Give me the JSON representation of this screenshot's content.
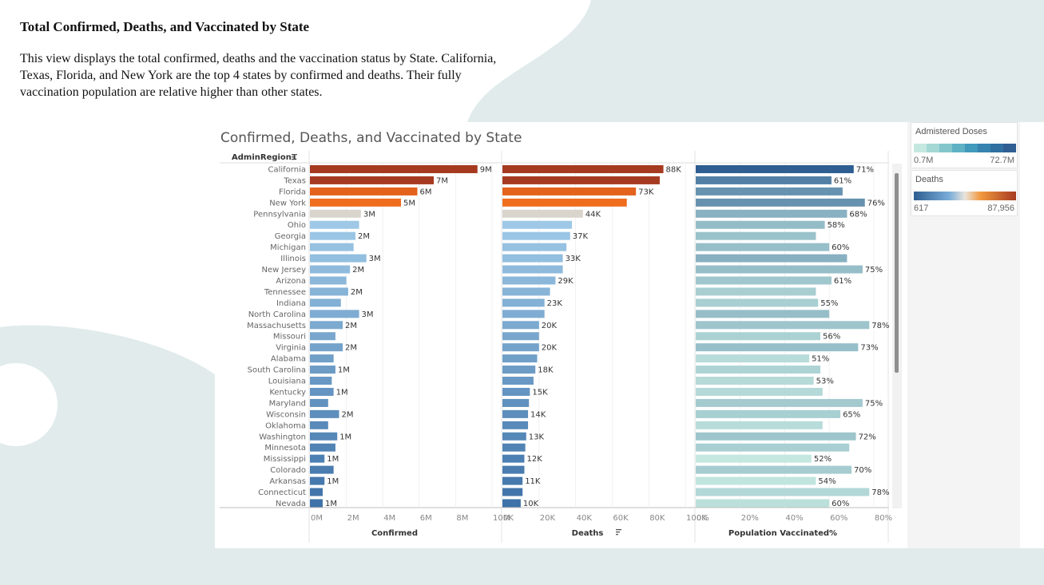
{
  "slide": {
    "title": "Total Confirmed, Deaths, and Vaccinated by State",
    "description": "This view displays the total confirmed, deaths and the vaccination status by State. California, Texas, Florida, and New York are the top 4 states by confirmed and deaths. Their fully vaccination population are relative higher than other states."
  },
  "legends": {
    "doses": {
      "title": "Admistered Doses",
      "min": "0.7M",
      "max": "72.7M"
    },
    "deaths": {
      "title": "Deaths",
      "min": "617",
      "max": "87,956"
    }
  },
  "colors": {
    "top_reds": [
      "#a63a20",
      "#a63a20",
      "#e3621c",
      "#ef6d1d"
    ],
    "neutral": "#d9d4cc",
    "blue_light": "#9ec8e6",
    "blue_dark": "#3e72a8",
    "teal_light": "#c4e8e0",
    "teal_dark": "#2e5e92"
  },
  "chart_data": {
    "type": "bar",
    "orientation": "horizontal",
    "title": "Confirmed, Deaths, and Vaccinated by State",
    "row_header": "AdminRegion1",
    "categories": [
      "California",
      "Texas",
      "Florida",
      "New York",
      "Pennsylvania",
      "Ohio",
      "Georgia",
      "Michigan",
      "Illinois",
      "New Jersey",
      "Arizona",
      "Tennessee",
      "Indiana",
      "North Carolina",
      "Massachusetts",
      "Missouri",
      "Virginia",
      "Alabama",
      "South Carolina",
      "Louisiana",
      "Kentucky",
      "Maryland",
      "Wisconsin",
      "Oklahoma",
      "Washington",
      "Minnesota",
      "Mississippi",
      "Colorado",
      "Arkansas",
      "Connecticut",
      "Nevada"
    ],
    "panels": [
      {
        "name": "Confirmed",
        "xlabel": "Confirmed",
        "unit": "M",
        "xlim": [
          0,
          10
        ],
        "ticks": [
          "0M",
          "2M",
          "4M",
          "6M",
          "8M",
          "10M"
        ],
        "values": [
          9.2,
          6.8,
          5.9,
          5.0,
          2.8,
          2.7,
          2.5,
          2.4,
          3.1,
          2.2,
          2.0,
          2.1,
          1.7,
          2.7,
          1.8,
          1.4,
          1.8,
          1.3,
          1.4,
          1.2,
          1.3,
          1.0,
          1.6,
          1.0,
          1.5,
          1.4,
          0.8,
          1.3,
          0.8,
          0.7,
          0.7
        ],
        "labels": [
          "9M",
          "7M",
          "6M",
          "5M",
          "3M",
          "",
          "2M",
          "",
          "3M",
          "2M",
          "",
          "2M",
          "",
          "3M",
          "2M",
          "",
          "2M",
          "",
          "1M",
          "",
          "1M",
          "",
          "2M",
          "",
          "1M",
          "",
          "1M",
          "",
          "1M",
          "",
          "1M"
        ]
      },
      {
        "name": "Deaths",
        "xlabel": "Deaths",
        "unit": "K",
        "xlim": [
          0,
          100
        ],
        "ticks": [
          "0K",
          "20K",
          "40K",
          "60K",
          "80K",
          "100K"
        ],
        "values": [
          88.0,
          86.0,
          73.0,
          68.0,
          44.0,
          38.0,
          37.0,
          35.0,
          33.0,
          33.0,
          29.0,
          26.0,
          23.0,
          23.0,
          20.0,
          20.0,
          20.0,
          19.0,
          18.0,
          17.0,
          15.0,
          14.5,
          14.0,
          14.0,
          13.0,
          12.5,
          12.0,
          12.0,
          11.0,
          11.0,
          10.0
        ],
        "labels": [
          "88K",
          "",
          "73K",
          "",
          "44K",
          "",
          "37K",
          "",
          "33K",
          "",
          "29K",
          "",
          "23K",
          "",
          "20K",
          "",
          "20K",
          "",
          "18K",
          "",
          "15K",
          "",
          "14K",
          "",
          "13K",
          "",
          "12K",
          "",
          "11K",
          "",
          "10K"
        ]
      },
      {
        "name": "Population Vaccinated%",
        "xlabel": "Population Vaccinated%",
        "unit": "%",
        "xlim": [
          0,
          84
        ],
        "ticks": [
          "0%",
          "20%",
          "40%",
          "60%",
          "80%"
        ],
        "values": [
          71,
          61,
          66,
          76,
          68,
          58,
          54,
          60,
          68,
          75,
          61,
          54,
          55,
          60,
          78,
          56,
          73,
          51,
          56,
          53,
          57,
          75,
          65,
          57,
          72,
          69,
          52,
          70,
          54,
          78,
          60
        ],
        "labels": [
          "71%",
          "61%",
          "",
          "76%",
          "68%",
          "58%",
          "",
          "60%",
          "",
          "75%",
          "61%",
          "",
          "55%",
          "",
          "78%",
          "56%",
          "73%",
          "51%",
          "",
          "53%",
          "",
          "75%",
          "65%",
          "",
          "72%",
          "",
          "52%",
          "70%",
          "54%",
          "78%",
          "60%"
        ],
        "doses_millions": [
          72.7,
          50.1,
          38.2,
          38.9,
          21.5,
          16.5,
          14.0,
          15.3,
          22.0,
          15.6,
          11.8,
          9.3,
          9.0,
          15.5,
          12.5,
          8.2,
          15.3,
          5.0,
          7.5,
          5.5,
          5.6,
          10.6,
          9.0,
          5.0,
          12.5,
          8.8,
          2.8,
          9.8,
          3.1,
          6.3,
          4.0
        ]
      }
    ]
  }
}
